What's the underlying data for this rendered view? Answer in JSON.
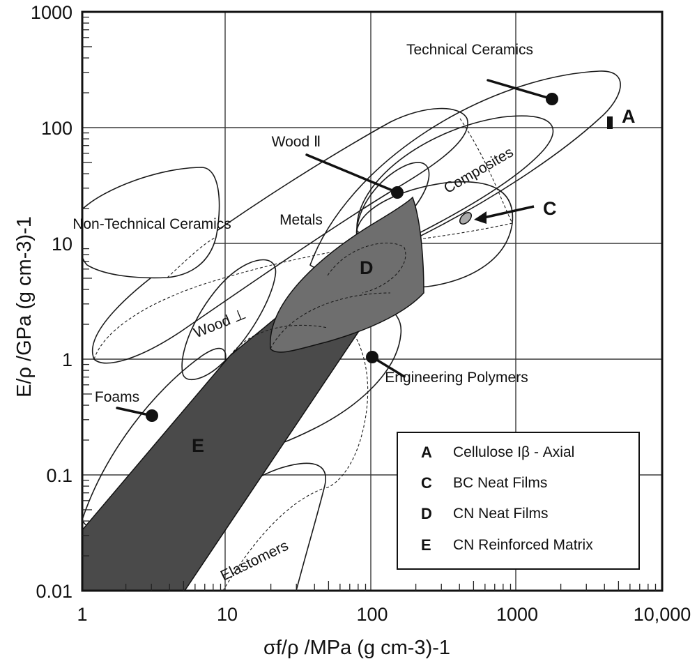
{
  "chart_data": {
    "type": "scatter",
    "xlabel": "σf/ρ  /MPa (g cm-3)-1",
    "ylabel": "E/ρ  /GPa (g cm-3)-1",
    "x_scale": "log",
    "y_scale": "log",
    "xlim": [
      1,
      10000
    ],
    "ylim": [
      0.01,
      1000
    ],
    "grid": true,
    "x_ticks": [
      {
        "value": 1,
        "label": "1"
      },
      {
        "value": 10,
        "label": "10"
      },
      {
        "value": 100,
        "label": "100"
      },
      {
        "value": 1000,
        "label": "1000"
      },
      {
        "value": 10000,
        "label": "10,000"
      }
    ],
    "y_ticks": [
      {
        "value": 1000,
        "label": "1000"
      },
      {
        "value": 100,
        "label": "100"
      },
      {
        "value": 10,
        "label": "10"
      },
      {
        "value": 1,
        "label": "1"
      },
      {
        "value": 0.1,
        "label": "0.1"
      },
      {
        "value": 0.01,
        "label": "0.01"
      }
    ],
    "material_classes": [
      {
        "name": "Technical Ceramics",
        "x": 1800,
        "y": 180
      },
      {
        "name": "Wood Ⅱ",
        "x": 155,
        "y": 27
      },
      {
        "name": "Composites"
      },
      {
        "name": "Metals"
      },
      {
        "name": "Non-Technical Ceramics"
      },
      {
        "name": "Wood ⊥"
      },
      {
        "name": "Foams",
        "x": 3.1,
        "y": 0.33
      },
      {
        "name": "Engineering Polymers",
        "x": 100,
        "y": 1.05
      },
      {
        "name": "Elastomers"
      }
    ],
    "highlighted_regions": [
      {
        "key": "A",
        "name": "Cellulose Iβ - Axial",
        "x": 4600,
        "y_range": [
          98,
          125
        ],
        "color": "#111111"
      },
      {
        "key": "C",
        "name": "BC Neat Films",
        "x": 480,
        "y": 15,
        "color": "#aaaaaa"
      },
      {
        "key": "D",
        "name": "CN Neat Films",
        "color": "#6e6e6e"
      },
      {
        "key": "E",
        "name": "CN Reinforced Matrix",
        "color": "#4a4a4a"
      }
    ],
    "legend": {
      "placement": "bottom-right",
      "entries": [
        {
          "key": "A",
          "text": "Cellulose Iβ - Axial"
        },
        {
          "key": "C",
          "text": "BC Neat Films"
        },
        {
          "key": "D",
          "text": "CN Neat Films"
        },
        {
          "key": "E",
          "text": "CN Reinforced Matrix"
        }
      ]
    }
  }
}
